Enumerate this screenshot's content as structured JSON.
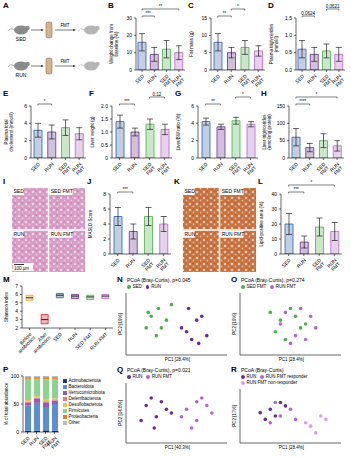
{
  "chart_data": [
    {
      "type": "diagram",
      "panel": "A",
      "rows": [
        "SED",
        "RUN"
      ],
      "transfer": "FMT"
    },
    {
      "type": "bar",
      "panel": "B",
      "y_label": "Weight change from baseline (%)",
      "categories": [
        "SED",
        "RUN",
        "SED FMT",
        "RUN FMT"
      ],
      "values": [
        16,
        9,
        12,
        10
      ],
      "sd": [
        5,
        4,
        5,
        4
      ],
      "colors": [
        "#2f5fa7",
        "#6a2c91",
        "#4cae4c",
        "#b266c8"
      ],
      "ylim": [
        0,
        30
      ],
      "yticks": [
        0,
        10,
        20,
        30
      ],
      "annotations": [
        {
          "text": "***",
          "from": 0,
          "to": 1
        },
        {
          "text": "**",
          "from": 0,
          "to": 3
        }
      ]
    },
    {
      "type": "bar",
      "panel": "C",
      "y_label": "Fat mass (g)",
      "categories": [
        "SED",
        "RUN",
        "SED FMT",
        "RUN FMT"
      ],
      "values": [
        8,
        5,
        6.5,
        5.5
      ],
      "sd": [
        2.5,
        1.5,
        2,
        1.5
      ],
      "colors": [
        "#2f5fa7",
        "#6a2c91",
        "#4cae4c",
        "#b266c8"
      ],
      "ylim": [
        0,
        15
      ],
      "yticks": [
        0,
        5,
        10,
        15
      ],
      "annotations": [
        {
          "text": "**",
          "from": 0,
          "to": 1
        },
        {
          "text": "*",
          "from": 1,
          "to": 2
        }
      ]
    },
    {
      "type": "bar",
      "panel": "D",
      "y_label": "Plasma triglycerides (mmol/l)",
      "categories": [
        "SED",
        "RUN",
        "SED FMT",
        "RUN FMT"
      ],
      "values": [
        0.6,
        0.45,
        0.55,
        0.45
      ],
      "sd": [
        0.25,
        0.2,
        0.2,
        0.2
      ],
      "colors": [
        "#2f5fa7",
        "#6a2c91",
        "#4cae4c",
        "#b266c8"
      ],
      "ylim": [
        0,
        1.5
      ],
      "yticks": [
        {
          "value": 0,
          "label": "0.0"
        },
        0.5,
        {
          "value": 1,
          "label": "1.0"
        },
        1.5
      ],
      "annotations": [
        {
          "text": "0.0624",
          "from": 0,
          "to": 1
        },
        {
          "text": "0.0621",
          "from": 2,
          "to": 3
        }
      ]
    },
    {
      "type": "bar",
      "panel": "E",
      "y_label": "Plasma total cholesterol (mmol/l)",
      "categories": [
        "SED",
        "RUN",
        "SED FMT",
        "RUN FMT"
      ],
      "values": [
        3.2,
        3.0,
        3.5,
        2.8
      ],
      "sd": [
        0.8,
        0.8,
        0.9,
        0.7
      ],
      "colors": [
        "#2f5fa7",
        "#6a2c91",
        "#4cae4c",
        "#b266c8"
      ],
      "ylim": [
        0,
        6
      ],
      "yticks": [
        0,
        2,
        4,
        6
      ],
      "annotations": [
        {
          "text": "*",
          "from": 0,
          "to": 1
        }
      ]
    },
    {
      "type": "bar",
      "panel": "F",
      "y_label": "Liver weight (g)",
      "categories": [
        "SED",
        "RUN",
        "SED FMT",
        "RUN FMT"
      ],
      "values": [
        1.4,
        1.0,
        1.3,
        1.1
      ],
      "sd": [
        0.25,
        0.15,
        0.2,
        0.2
      ],
      "colors": [
        "#2f5fa7",
        "#6a2c91",
        "#4cae4c",
        "#b266c8"
      ],
      "ylim": [
        0,
        2
      ],
      "yticks": [
        0,
        0.5,
        {
          "value": 1,
          "label": "1.0"
        },
        1.5,
        {
          "value": 2,
          "label": "2.0"
        }
      ],
      "annotations": [
        {
          "text": "***",
          "from": 0,
          "to": 1
        },
        {
          "text": "0.12",
          "from": 2,
          "to": 3
        }
      ]
    },
    {
      "type": "bar",
      "panel": "G",
      "y_label": "Liver/BW ratio (%)",
      "categories": [
        "SED",
        "RUN",
        "SED FMT",
        "RUN FMT"
      ],
      "values": [
        4.2,
        3.6,
        4.3,
        3.9
      ],
      "sd": [
        0.4,
        0.3,
        0.4,
        0.3
      ],
      "colors": [
        "#2f5fa7",
        "#6a2c91",
        "#4cae4c",
        "#b266c8"
      ],
      "ylim": [
        0,
        6
      ],
      "yticks": [
        0,
        2,
        4,
        6
      ],
      "annotations": [
        {
          "text": "**",
          "from": 0,
          "to": 1
        },
        {
          "text": "*",
          "from": 2,
          "to": 3
        }
      ]
    },
    {
      "type": "bar",
      "panel": "H",
      "y_label": "Liver triglycerides (nmol/mg protein)",
      "categories": [
        "SED",
        "RUN",
        "SED FMT",
        "RUN FMT"
      ],
      "values": [
        60,
        30,
        50,
        35
      ],
      "sd": [
        25,
        12,
        20,
        15
      ],
      "colors": [
        "#2f5fa7",
        "#6a2c91",
        "#4cae4c",
        "#b266c8"
      ],
      "ylim": [
        0,
        150
      ],
      "yticks": [
        0,
        50,
        100,
        150
      ],
      "annotations": [
        {
          "text": "****",
          "from": 0,
          "to": 1
        },
        {
          "text": "*",
          "from": 0,
          "to": 3
        }
      ]
    },
    {
      "type": "image",
      "panel": "I",
      "labels": [
        "SED",
        "SED FMT",
        "RUN",
        "RUN FMT"
      ],
      "scale_bar": "100 µm",
      "color": "#d79bc4"
    },
    {
      "type": "bar",
      "panel": "J",
      "y_label": "MASLD Score",
      "categories": [
        "SED",
        "RUN",
        "SED FMT",
        "RUN FMT"
      ],
      "values": [
        5,
        3,
        5,
        4
      ],
      "sd": [
        1.2,
        1,
        1.2,
        1
      ],
      "colors": [
        "#2f5fa7",
        "#6a2c91",
        "#4cae4c",
        "#b266c8"
      ],
      "ylim": [
        0,
        8
      ],
      "yticks": [
        0,
        2,
        4,
        6,
        8
      ],
      "annotations": [
        {
          "text": "***",
          "from": 0,
          "to": 1
        }
      ]
    },
    {
      "type": "image",
      "panel": "K",
      "labels": [
        "SED",
        "SED FMT",
        "RUN",
        "RUN FMT"
      ],
      "color": "#c8733f"
    },
    {
      "type": "bar",
      "panel": "L",
      "y_label": "Lipid-positive area (%)",
      "categories": [
        "SED",
        "RUN",
        "SED FMT",
        "RUN FMT"
      ],
      "values": [
        20,
        8,
        18,
        15
      ],
      "sd": [
        7,
        4,
        6,
        6
      ],
      "colors": [
        "#2f5fa7",
        "#6a2c91",
        "#4cae4c",
        "#b266c8"
      ],
      "ylim": [
        0,
        40
      ],
      "yticks": [
        0,
        10,
        20,
        30,
        40
      ],
      "annotations": [
        {
          "text": "***",
          "from": 0,
          "to": 1
        },
        {
          "text": "*",
          "from": 0,
          "to": 3
        }
      ]
    },
    {
      "type": "box",
      "panel": "M",
      "y_label": "Shannon index",
      "categories": [
        "Before antibiotics",
        "After antibiotics",
        "SED",
        "RUN",
        "SED FMT",
        "RUN FMT"
      ],
      "values": [
        5.6,
        3.0,
        5.9,
        5.8,
        5.7,
        5.8
      ],
      "q1": [
        5.3,
        2.5,
        5.6,
        5.5,
        5.4,
        5.5
      ],
      "q3": [
        5.9,
        3.6,
        6.1,
        6.0,
        5.9,
        6.0
      ],
      "colors": [
        "#f0a030",
        "#d62728",
        "#2f5fa7",
        "#6a2c91",
        "#4cae4c",
        "#b266c8"
      ],
      "ylim": [
        2,
        7
      ],
      "yticks": [
        2,
        3,
        4,
        5,
        6,
        7
      ]
    },
    {
      "type": "scatter",
      "panel": "N",
      "title": "PCoA (Bray-Curtis), p=0.045",
      "x_label": "PC1 [28.4%]",
      "y_label": "PC2 [19%]",
      "xlim": [
        -0.5,
        0.5
      ],
      "ylim": [
        -0.4,
        0.4
      ],
      "tick_labels": false,
      "legend": "top",
      "marker": "circle",
      "series": [
        {
          "name": "SED",
          "color": "#4cae4c",
          "x": [
            -0.25,
            -0.18,
            -0.3,
            -0.1,
            -0.2,
            -0.05,
            -0.15,
            -0.28
          ],
          "values": [
            0.1,
            0.2,
            -0.05,
            0.05,
            -0.15,
            0.25,
            -0.05,
            0.15
          ]
        },
        {
          "name": "RUN",
          "color": "#6a2c91",
          "x": [
            0.1,
            0.2,
            0.15,
            0.25,
            0.05,
            0.3,
            0.12,
            0.22
          ],
          "values": [
            -0.1,
            0.05,
            -0.2,
            0.1,
            -0.05,
            -0.15,
            0.2,
            -0.25
          ]
        }
      ]
    },
    {
      "type": "scatter",
      "panel": "O",
      "title": "PCoA (Bray-Curtis), p=0.274",
      "x_label": "PC1 [28.4%]",
      "y_label": "PC2 [19%]",
      "xlim": [
        -0.5,
        0.5
      ],
      "ylim": [
        -0.4,
        0.4
      ],
      "tick_labels": false,
      "legend": "top",
      "marker": "circle",
      "series": [
        {
          "name": "SED FMT",
          "color": "#4cae4c",
          "x": [
            -0.2,
            -0.1,
            0.0,
            0.1,
            -0.15,
            0.05,
            -0.05,
            0.15
          ],
          "values": [
            0.15,
            0.05,
            0.2,
            -0.05,
            -0.1,
            0.1,
            -0.2,
            0.0
          ]
        },
        {
          "name": "RUN FMT",
          "color": "#b266c8",
          "x": [
            -0.1,
            0.05,
            0.2,
            0.1,
            -0.05,
            0.25,
            0.0,
            0.15
          ],
          "values": [
            0.0,
            -0.15,
            0.1,
            0.2,
            0.15,
            -0.05,
            -0.25,
            -0.2
          ]
        }
      ]
    },
    {
      "type": "bar",
      "stacked": true,
      "panel": "P",
      "y_label": "% of total abundance",
      "categories": [
        "SED",
        "RUN",
        "SED FMT",
        "RUN FMT"
      ],
      "ylim": [
        0,
        100
      ],
      "yticks": [
        0,
        50,
        100
      ],
      "legend": "right",
      "series": [
        {
          "name": "Actinobacteriota",
          "color": "#1f3b73",
          "values": [
            2,
            2,
            3,
            2
          ]
        },
        {
          "name": "Bacteroidota",
          "color": "#5b8fd1",
          "values": [
            45,
            50,
            40,
            48
          ]
        },
        {
          "name": "Verrucomicrobiota",
          "color": "#9b59b6",
          "values": [
            5,
            8,
            10,
            6
          ]
        },
        {
          "name": "Deferribacterota",
          "color": "#e07b91",
          "values": [
            2,
            1,
            2,
            1
          ]
        },
        {
          "name": "Desulfobacterota",
          "color": "#f2c14e",
          "values": [
            3,
            3,
            4,
            3
          ]
        },
        {
          "name": "Firmicutes",
          "color": "#8fd18f",
          "values": [
            38,
            31,
            35,
            35
          ]
        },
        {
          "name": "Proteobacteria",
          "color": "#e67e22",
          "values": [
            3,
            3,
            4,
            3
          ]
        },
        {
          "name": "Other",
          "color": "#bbbbbb",
          "values": [
            2,
            2,
            2,
            2
          ]
        }
      ]
    },
    {
      "type": "scatter",
      "panel": "Q",
      "title": "PCoA (Bray-Curtis), p=0.021",
      "x_label": "PC1 [40.3%]",
      "y_label": "PC2 [14.8%]",
      "xlim": [
        -0.5,
        0.5
      ],
      "ylim": [
        -0.4,
        0.4
      ],
      "tick_labels": false,
      "legend": "top",
      "marker": "circle",
      "series": [
        {
          "name": "RUN",
          "color": "#6a2c91",
          "x": [
            -0.3,
            -0.2,
            -0.25,
            -0.1,
            -0.35,
            -0.15,
            -0.22,
            -0.05
          ],
          "values": [
            0.1,
            -0.05,
            0.2,
            0.05,
            -0.1,
            0.15,
            -0.2,
            0.0
          ]
        },
        {
          "name": "RUN FMT",
          "color": "#b266c8",
          "x": [
            0.1,
            0.2,
            0.3,
            0.15,
            0.25,
            0.05,
            0.35,
            0.2
          ],
          "values": [
            0.05,
            -0.1,
            0.1,
            -0.2,
            0.2,
            -0.05,
            0.0,
            0.15
          ]
        }
      ]
    },
    {
      "type": "scatter",
      "panel": "R",
      "title": "PCoA (Bray-Curtis)",
      "x_label": "PC1 [28.4%]",
      "y_label": "PC2 [17%]",
      "xlim": [
        -0.5,
        0.5
      ],
      "ylim": [
        -0.4,
        0.4
      ],
      "tick_labels": false,
      "legend": "top",
      "marker": "circle",
      "series": [
        {
          "name": "RUN",
          "color": "#6a2c91",
          "x": [
            -0.2,
            -0.1,
            -0.25,
            -0.15,
            -0.05,
            -0.3
          ],
          "values": [
            0.1,
            0.2,
            -0.05,
            0.0,
            0.15,
            0.05
          ]
        },
        {
          "name": "RUN FMT responder",
          "color": "#b266c8",
          "x": [
            -0.1,
            0.0,
            -0.2,
            0.05,
            -0.15
          ],
          "values": [
            0.0,
            0.1,
            -0.1,
            -0.05,
            0.2
          ]
        },
        {
          "name": "RUN FMT non-responder",
          "color": "#d7a0e3",
          "x": [
            0.2,
            0.3,
            0.25,
            0.15,
            0.35
          ],
          "values": [
            -0.15,
            0.0,
            -0.25,
            -0.1,
            -0.05
          ]
        }
      ]
    }
  ]
}
